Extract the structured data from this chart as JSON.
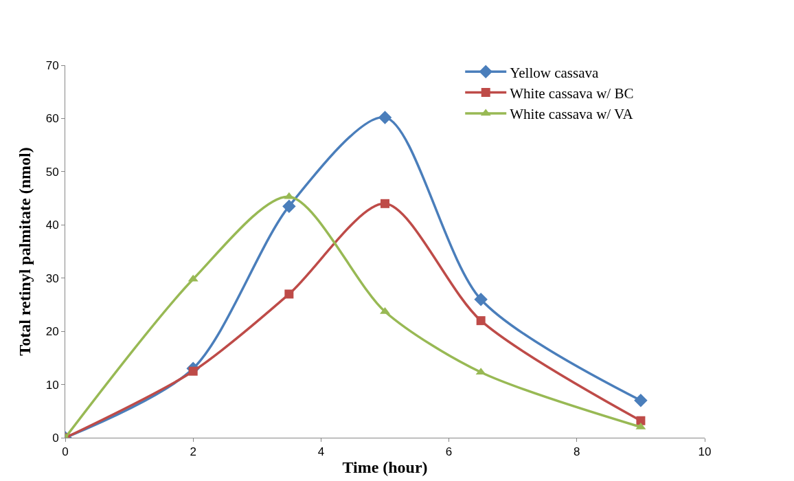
{
  "chart_data": {
    "type": "line",
    "xlabel": "Time (hour)",
    "ylabel": "Total retinyl palmitate (nmol)",
    "x": [
      0,
      2,
      3.5,
      5,
      6.5,
      9
    ],
    "series": [
      {
        "name": "Yellow cassava",
        "color": "#4a7ebb",
        "marker": "diamond",
        "values": [
          0,
          13,
          43.5,
          60.2,
          26,
          7
        ]
      },
      {
        "name": "White cassava w/ BC",
        "color": "#be4b48",
        "marker": "square",
        "values": [
          0,
          12.5,
          27,
          44,
          22,
          3.2
        ]
      },
      {
        "name": "White cassava w/ VA",
        "color": "#98b954",
        "marker": "triangle",
        "values": [
          0,
          29.8,
          45.3,
          23.7,
          12.3,
          2
        ]
      }
    ],
    "xlim": [
      0,
      10
    ],
    "xticks": [
      0,
      2,
      4,
      6,
      8,
      10
    ],
    "ylim": [
      0,
      70
    ],
    "yticks": [
      0,
      10,
      20,
      30,
      40,
      50,
      60,
      70
    ],
    "grid": false,
    "legend": "top right",
    "line_style": "solid"
  }
}
